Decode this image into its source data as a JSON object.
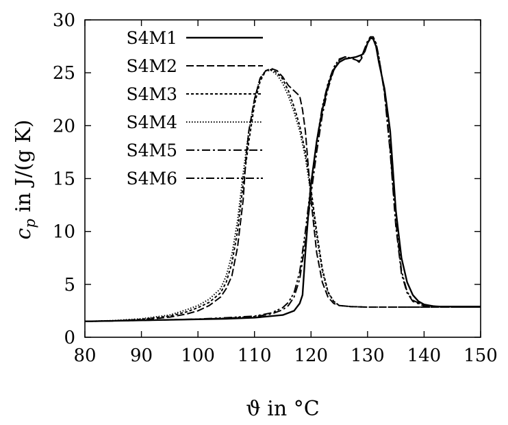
{
  "chart_data": {
    "type": "line",
    "xlabel": "ϑ in °C",
    "ylabel_main": "c",
    "ylabel_sub": "p",
    "ylabel_rest": " in J/(g K)",
    "xlim": [
      80,
      150
    ],
    "ylim": [
      0,
      30
    ],
    "xticks": [
      "80",
      "90",
      "100",
      "110",
      "120",
      "130",
      "140",
      "150"
    ],
    "yticks": [
      "0",
      "5",
      "10",
      "15",
      "20",
      "25",
      "30"
    ],
    "grid": false,
    "legend_position": "top-left",
    "series": [
      {
        "name": "S4M1",
        "dash": "solid",
        "x": [
          80,
          85,
          90,
          95,
          100,
          105,
          110,
          115,
          117,
          118,
          118.5,
          119,
          119.5,
          120,
          121,
          122,
          123,
          124,
          125,
          126,
          127,
          128,
          129,
          129.5,
          130,
          130.5,
          131,
          131.5,
          132,
          133,
          134,
          135,
          136,
          137,
          138,
          139,
          140,
          142,
          145,
          150
        ],
        "y": [
          1.5,
          1.55,
          1.6,
          1.65,
          1.7,
          1.75,
          1.85,
          2.1,
          2.5,
          3.2,
          4.0,
          8.0,
          11.5,
          14.5,
          18.5,
          21.5,
          23.8,
          25.3,
          26.0,
          26.3,
          26.4,
          26.5,
          26.7,
          27.0,
          27.8,
          28.3,
          28.2,
          27.5,
          26.0,
          23.5,
          19.5,
          12.0,
          7.5,
          5.2,
          4.0,
          3.4,
          3.1,
          2.9,
          2.9,
          2.9
        ]
      },
      {
        "name": "S4M2",
        "dash": "11 4",
        "x": [
          80,
          85,
          90,
          95,
          98,
          100,
          102,
          104,
          105,
          106,
          107,
          108,
          108.5,
          109,
          110,
          111,
          112,
          113,
          114,
          115,
          116,
          117,
          118,
          118.5,
          119,
          120,
          120.5,
          121,
          122,
          123,
          124,
          125,
          127,
          130,
          135,
          140,
          150
        ],
        "y": [
          1.5,
          1.55,
          1.65,
          1.9,
          2.2,
          2.5,
          3.0,
          3.8,
          4.6,
          5.8,
          8.5,
          13.0,
          17.0,
          19.5,
          22.5,
          24.5,
          25.2,
          25.4,
          25.2,
          24.6,
          23.8,
          23.3,
          22.8,
          21.5,
          19.5,
          13.0,
          10.5,
          8.0,
          5.2,
          3.8,
          3.2,
          3.0,
          2.9,
          2.85,
          2.85,
          2.85,
          2.85
        ]
      },
      {
        "name": "S4M3",
        "dash": "4 3",
        "x": [
          80,
          85,
          90,
          95,
          98,
          100,
          102,
          104,
          105,
          106,
          107,
          108,
          109,
          110,
          111,
          112,
          113,
          114,
          115,
          116,
          117,
          118,
          119,
          120,
          121,
          122,
          123,
          124,
          125,
          127,
          130,
          135,
          140,
          150
        ],
        "y": [
          1.5,
          1.55,
          1.7,
          2.0,
          2.4,
          2.8,
          3.3,
          4.2,
          5.2,
          7.0,
          10.0,
          14.5,
          18.5,
          22.0,
          24.2,
          25.2,
          25.3,
          25.0,
          24.4,
          23.3,
          21.8,
          20.0,
          17.5,
          14.0,
          10.0,
          6.5,
          4.3,
          3.4,
          3.0,
          2.9,
          2.85,
          2.85,
          2.85,
          2.85
        ]
      },
      {
        "name": "S4M4",
        "dash": "1.5 2.5",
        "x": [
          80,
          85,
          90,
          95,
          98,
          100,
          102,
          104,
          105,
          106,
          107,
          108,
          109,
          110,
          111,
          112,
          113,
          114,
          115,
          116,
          117,
          118,
          119,
          120,
          121,
          122,
          123,
          124,
          125,
          127,
          130,
          135,
          140,
          150
        ],
        "y": [
          1.5,
          1.58,
          1.75,
          2.1,
          2.6,
          3.0,
          3.6,
          4.6,
          5.8,
          7.8,
          11.0,
          15.5,
          19.5,
          22.5,
          24.5,
          25.2,
          25.2,
          24.8,
          24.0,
          22.8,
          21.3,
          19.5,
          17.0,
          13.5,
          9.5,
          6.2,
          4.2,
          3.4,
          3.0,
          2.9,
          2.85,
          2.85,
          2.85,
          2.85
        ]
      },
      {
        "name": "S4M5",
        "dash": "12 4 3 4",
        "x": [
          80,
          85,
          90,
          95,
          100,
          105,
          110,
          113,
          115,
          116,
          117,
          118,
          119,
          120,
          121,
          122,
          123,
          124,
          125,
          126,
          127,
          128,
          128.5,
          129,
          130,
          130.5,
          131,
          131.5,
          132,
          133,
          134,
          135,
          136,
          137,
          138,
          140,
          145,
          150
        ],
        "y": [
          1.5,
          1.55,
          1.6,
          1.65,
          1.7,
          1.8,
          1.95,
          2.2,
          2.6,
          3.0,
          3.8,
          5.5,
          9.0,
          13.5,
          17.5,
          21.0,
          23.5,
          25.2,
          26.2,
          26.5,
          26.4,
          26.2,
          26.1,
          26.6,
          28.0,
          28.4,
          28.4,
          27.8,
          26.5,
          23.0,
          17.5,
          10.5,
          6.0,
          4.2,
          3.4,
          2.95,
          2.85,
          2.85
        ]
      },
      {
        "name": "S4M6",
        "dash": "12 4 3 3 3 4",
        "x": [
          80,
          85,
          90,
          95,
          100,
          105,
          110,
          113,
          115,
          116,
          117,
          118,
          119,
          120,
          121,
          122,
          123,
          124,
          125,
          126,
          127,
          128,
          128.5,
          129,
          130,
          130.5,
          131,
          131.5,
          132,
          133,
          134,
          135,
          136,
          137,
          138,
          140,
          145,
          150
        ],
        "y": [
          1.5,
          1.55,
          1.6,
          1.65,
          1.72,
          1.85,
          2.0,
          2.3,
          2.8,
          3.3,
          4.2,
          6.2,
          10.0,
          14.5,
          18.5,
          21.8,
          24.0,
          25.5,
          26.3,
          26.5,
          26.4,
          26.2,
          26.0,
          26.4,
          27.8,
          28.2,
          28.3,
          27.8,
          26.5,
          23.2,
          17.8,
          11.0,
          6.3,
          4.3,
          3.5,
          3.0,
          2.85,
          2.85
        ]
      }
    ]
  }
}
